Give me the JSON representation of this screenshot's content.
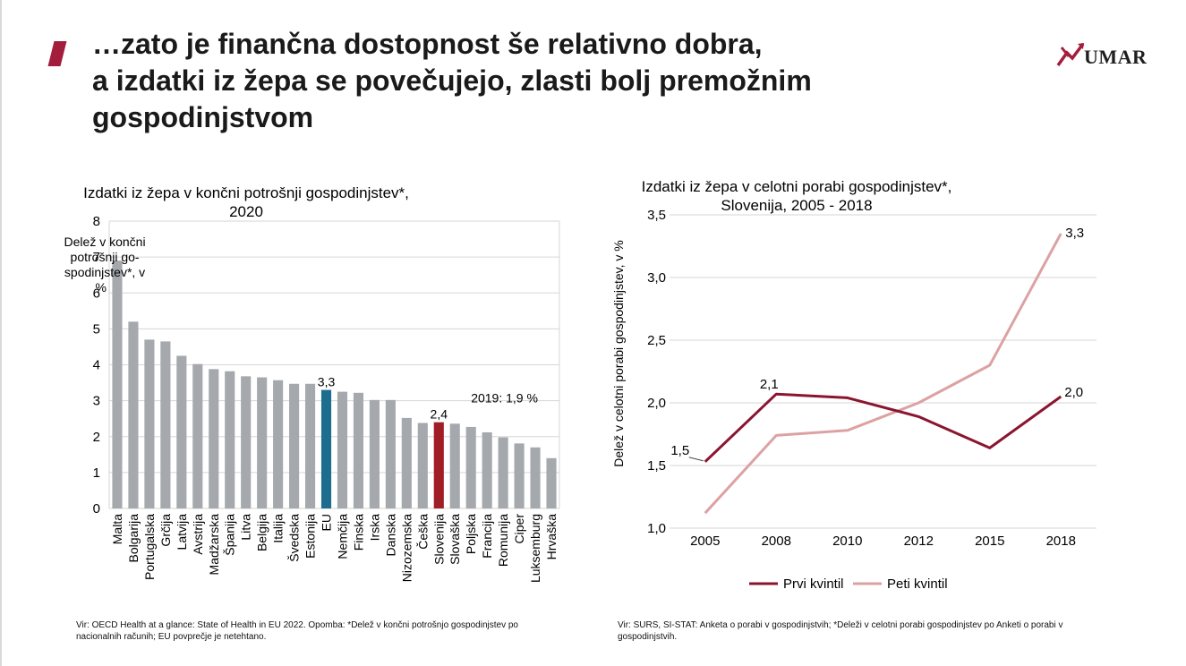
{
  "slide": {
    "title_lines": [
      "…zato je finančna dostopnost še relativno dobra,",
      "a izdatki iz žepa se povečujejo, zlasti bolj premožnim",
      "gospodinjstvom"
    ],
    "logo_text": "UMAR"
  },
  "left_chart": {
    "title_lines": [
      "Izdatki iz žepa v končni potrošnji gospodinjstev*,",
      "2020"
    ],
    "ylabel_lines": [
      "Delež v končni",
      "potrošnji go-",
      "spodinjstev*, v",
      "%"
    ],
    "annotation_2019": "2019: 1,9 %",
    "eu_label": "3,3",
    "slo_label": "2,4",
    "note_lines": [
      "Vir: OECD Health at a glance: State of Health in EU 2022. Opomba: *Delež v končni potrošnjo gospodinjstev po",
      "nacionalnih računih; EU povprečje je netehtano."
    ]
  },
  "right_chart": {
    "title_lines": [
      "Izdatki iz žepa v celotni porabi gospodinjstev*,",
      "Slovenija, 2005 - 2018"
    ],
    "ylabel": "Delež v celotni porabi gospodinjstev, v %",
    "label_first_start": "1,5",
    "label_first_peak": "2,1",
    "label_first_end": "2,0",
    "label_fifth_end": "3,3",
    "note_lines": [
      "Vir: SURS, SI-STAT: Anketa o porabi v gospodinjstvih; *Deleži v celotni porabi gospodinjstev po Anketi o porabi v",
      "gospodinjstvih."
    ]
  },
  "chart_data": [
    {
      "type": "bar",
      "title": "Izdatki iz žepa v končni potrošnji gospodinjstev*, 2020",
      "ylabel": "Delež v končni potrošnji gospodinjstev*, v %",
      "ylim": [
        0,
        8
      ],
      "yticks": [
        "0",
        "1",
        "2",
        "3",
        "4",
        "5",
        "6",
        "7",
        "8"
      ],
      "categories": [
        "Malta",
        "Bolgarija",
        "Portugalska",
        "Grčija",
        "Latvija",
        "Avstrija",
        "Madžarska",
        "Španija",
        "Litva",
        "Belgija",
        "Italija",
        "Švedska",
        "Estonija",
        "EU",
        "Nemčija",
        "Finska",
        "Irska",
        "Danska",
        "Nizozemska",
        "Češka",
        "Slovenija",
        "Slovaška",
        "Poljska",
        "Francija",
        "Romunija",
        "Ciper",
        "Luksemburg",
        "Hrvaška"
      ],
      "values": [
        6.9,
        5.2,
        4.7,
        4.65,
        4.25,
        4.02,
        3.88,
        3.82,
        3.68,
        3.65,
        3.57,
        3.47,
        3.47,
        3.3,
        3.25,
        3.22,
        3.02,
        3.02,
        2.52,
        2.38,
        2.4,
        2.36,
        2.27,
        2.12,
        1.98,
        1.81,
        1.7,
        1.4
      ],
      "colors": {
        "default": "#a5a9ad",
        "EU": "#1d6d8e",
        "Slovenija": "#a01e25"
      },
      "grid": true
    },
    {
      "type": "line",
      "title": "Izdatki iz žepa v celotni porabi gospodinjstev*, Slovenija, 2005 - 2018",
      "ylabel": "Delež v celotni porabi gospodinjstev, v %",
      "x": [
        "2005",
        "2008",
        "2010",
        "2012",
        "2015",
        "2018"
      ],
      "ylim": [
        1.0,
        3.5
      ],
      "yticks": [
        "1,0",
        "1,5",
        "2,0",
        "2,5",
        "3,0",
        "3,5"
      ],
      "series": [
        {
          "name": "Prvi kvintil",
          "color": "#8b1530",
          "values": [
            1.53,
            2.07,
            2.04,
            1.89,
            1.64,
            2.05
          ]
        },
        {
          "name": "Peti kvintil",
          "color": "#dca2a3",
          "values": [
            1.12,
            1.74,
            1.78,
            2.0,
            2.3,
            3.35
          ]
        }
      ],
      "legend": "bottom",
      "grid": true
    }
  ]
}
